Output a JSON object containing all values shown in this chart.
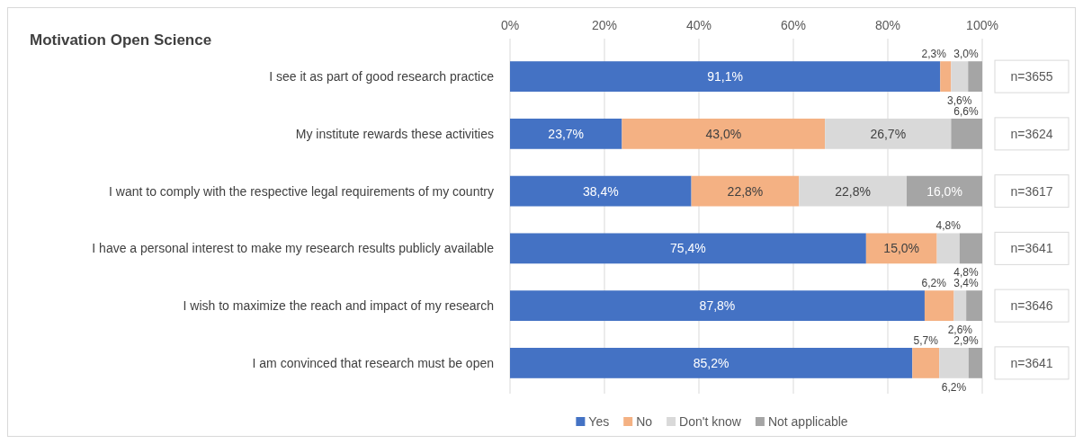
{
  "chart_data": {
    "type": "bar",
    "title": "Motivation Open Science",
    "orientation": "horizontal",
    "stacked": true,
    "categories": [
      "I see it as part of good research practice",
      "My institute rewards these activities",
      "I want to comply with the respective legal requirements of my country",
      "I have a personal interest to make my research results publicly available",
      "I wish to maximize the reach and impact of my research",
      "I am convinced that research must be open"
    ],
    "series": [
      {
        "name": "Yes",
        "color": "#4472c4",
        "values": [
          91.1,
          23.7,
          38.4,
          75.4,
          87.8,
          85.2
        ],
        "value_labels": [
          "91,1%",
          "23,7%",
          "38,4%",
          "75,4%",
          "87,8%",
          "85,2%"
        ]
      },
      {
        "name": "No",
        "color": "#f4b183",
        "values": [
          2.3,
          43.0,
          22.8,
          15.0,
          6.2,
          5.7
        ],
        "value_labels": [
          "2,3%",
          "43,0%",
          "22,8%",
          "15,0%",
          "6,2%",
          "5,7%"
        ]
      },
      {
        "name": "Don't know",
        "color": "#d9d9d9",
        "values": [
          3.6,
          26.7,
          22.8,
          4.8,
          2.6,
          6.2
        ],
        "value_labels": [
          "3,6%",
          "26,7%",
          "22,8%",
          "4,8%",
          "2,6%",
          "6,2%"
        ]
      },
      {
        "name": "Not applicable",
        "color": "#a5a5a5",
        "values": [
          3.0,
          6.6,
          16.0,
          4.8,
          3.4,
          2.9
        ],
        "value_labels": [
          "3,0%",
          "6,6%",
          "16,0%",
          "4,8%",
          "3,4%",
          "2,9%"
        ]
      }
    ],
    "xlim": [
      0,
      100
    ],
    "xticks": [
      {
        "value": 0,
        "label": "0%"
      },
      {
        "value": 20,
        "label": "20%"
      },
      {
        "value": 40,
        "label": "40%"
      },
      {
        "value": 60,
        "label": "60%"
      },
      {
        "value": 80,
        "label": "80%"
      },
      {
        "value": 100,
        "label": "100%"
      }
    ],
    "grid": "x",
    "legend": "bottom",
    "annotations": [
      "n=3655",
      "n=3624",
      "n=3617",
      "n=3641",
      "n=3646",
      "n=3641"
    ]
  }
}
